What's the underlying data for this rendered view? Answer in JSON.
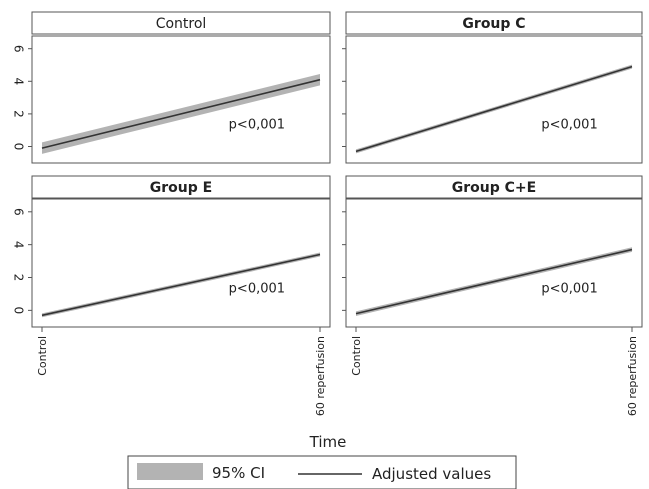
{
  "chart_data": {
    "type": "line",
    "xlabel": "Time",
    "x_categories": [
      "Control",
      "60 reperfusion"
    ],
    "ylim": [
      0,
      6
    ],
    "y_ticks": [
      0,
      2,
      4,
      6
    ],
    "panels": [
      {
        "title": "Control",
        "annotation": "p<0,001",
        "y_start": -0.1,
        "y_end": 4.1,
        "ci_halfwidth": 0.35
      },
      {
        "title": "Group C",
        "annotation": "p<0,001",
        "y_start": -0.3,
        "y_end": 4.9,
        "ci_halfwidth": 0.12
      },
      {
        "title": "Group E",
        "annotation": "p<0,001",
        "y_start": -0.3,
        "y_end": 3.4,
        "ci_halfwidth": 0.12
      },
      {
        "title": "Group C+E",
        "annotation": "p<0,001",
        "y_start": -0.2,
        "y_end": 3.7,
        "ci_halfwidth": 0.14
      }
    ],
    "legend": {
      "position": "bottom",
      "entries": [
        {
          "label": "95% CI",
          "kind": "band"
        },
        {
          "label": "Adjusted values",
          "kind": "line"
        }
      ]
    },
    "colors": {
      "band": "#b3b3b3",
      "line": "#333333"
    }
  }
}
